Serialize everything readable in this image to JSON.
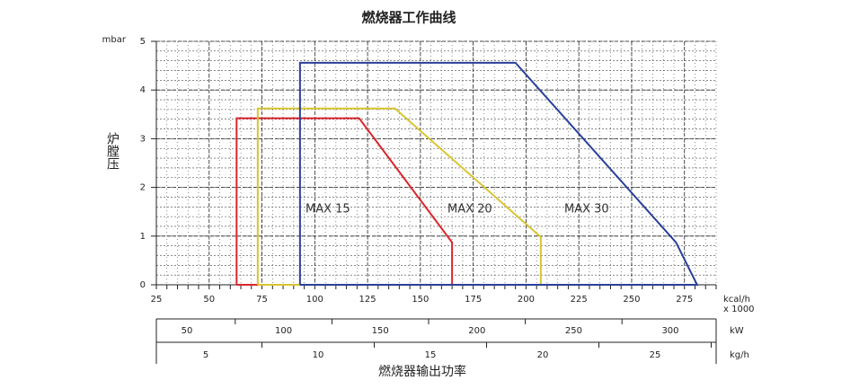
{
  "chart_data": {
    "type": "line",
    "title": "燃烧器工作曲线",
    "x_label": "燃烧器输出功率",
    "y_label": "炉膛压",
    "y_unit": "mbar",
    "x_unit": "kcal/h",
    "x_unit_scale": "x 1000",
    "xlim": [
      25,
      290
    ],
    "xticks": [
      25,
      50,
      75,
      100,
      125,
      150,
      175,
      200,
      225,
      250,
      275
    ],
    "ylim": [
      0,
      5
    ],
    "yticks": [
      0,
      1,
      2,
      3,
      4,
      5
    ],
    "grid": true,
    "secondary_axes": [
      {
        "unit": "kW",
        "lim": [
          34.2,
          323.7
        ],
        "ticks": [
          50,
          100,
          150,
          200,
          250,
          300
        ]
      },
      {
        "unit": "kg/h",
        "lim": [
          2.8,
          27.72
        ],
        "ticks": [
          5,
          10,
          15,
          20,
          25
        ]
      }
    ],
    "series": [
      {
        "name": "MAX 15",
        "color": "#d9262e",
        "x": [
          63,
          63,
          121,
          165,
          165,
          63
        ],
        "values": [
          0,
          3.42,
          3.42,
          0.87,
          0,
          0
        ]
      },
      {
        "name": "MAX 20",
        "color": "#d8c530",
        "x": [
          73,
          73,
          138,
          207,
          207,
          73
        ],
        "values": [
          0,
          3.62,
          3.62,
          0.98,
          0,
          0
        ]
      },
      {
        "name": "MAX 30",
        "color": "#2b3f9a",
        "x": [
          93,
          93,
          195,
          271,
          281,
          93
        ],
        "values": [
          0,
          4.56,
          4.56,
          0.87,
          0,
          0
        ]
      }
    ]
  }
}
